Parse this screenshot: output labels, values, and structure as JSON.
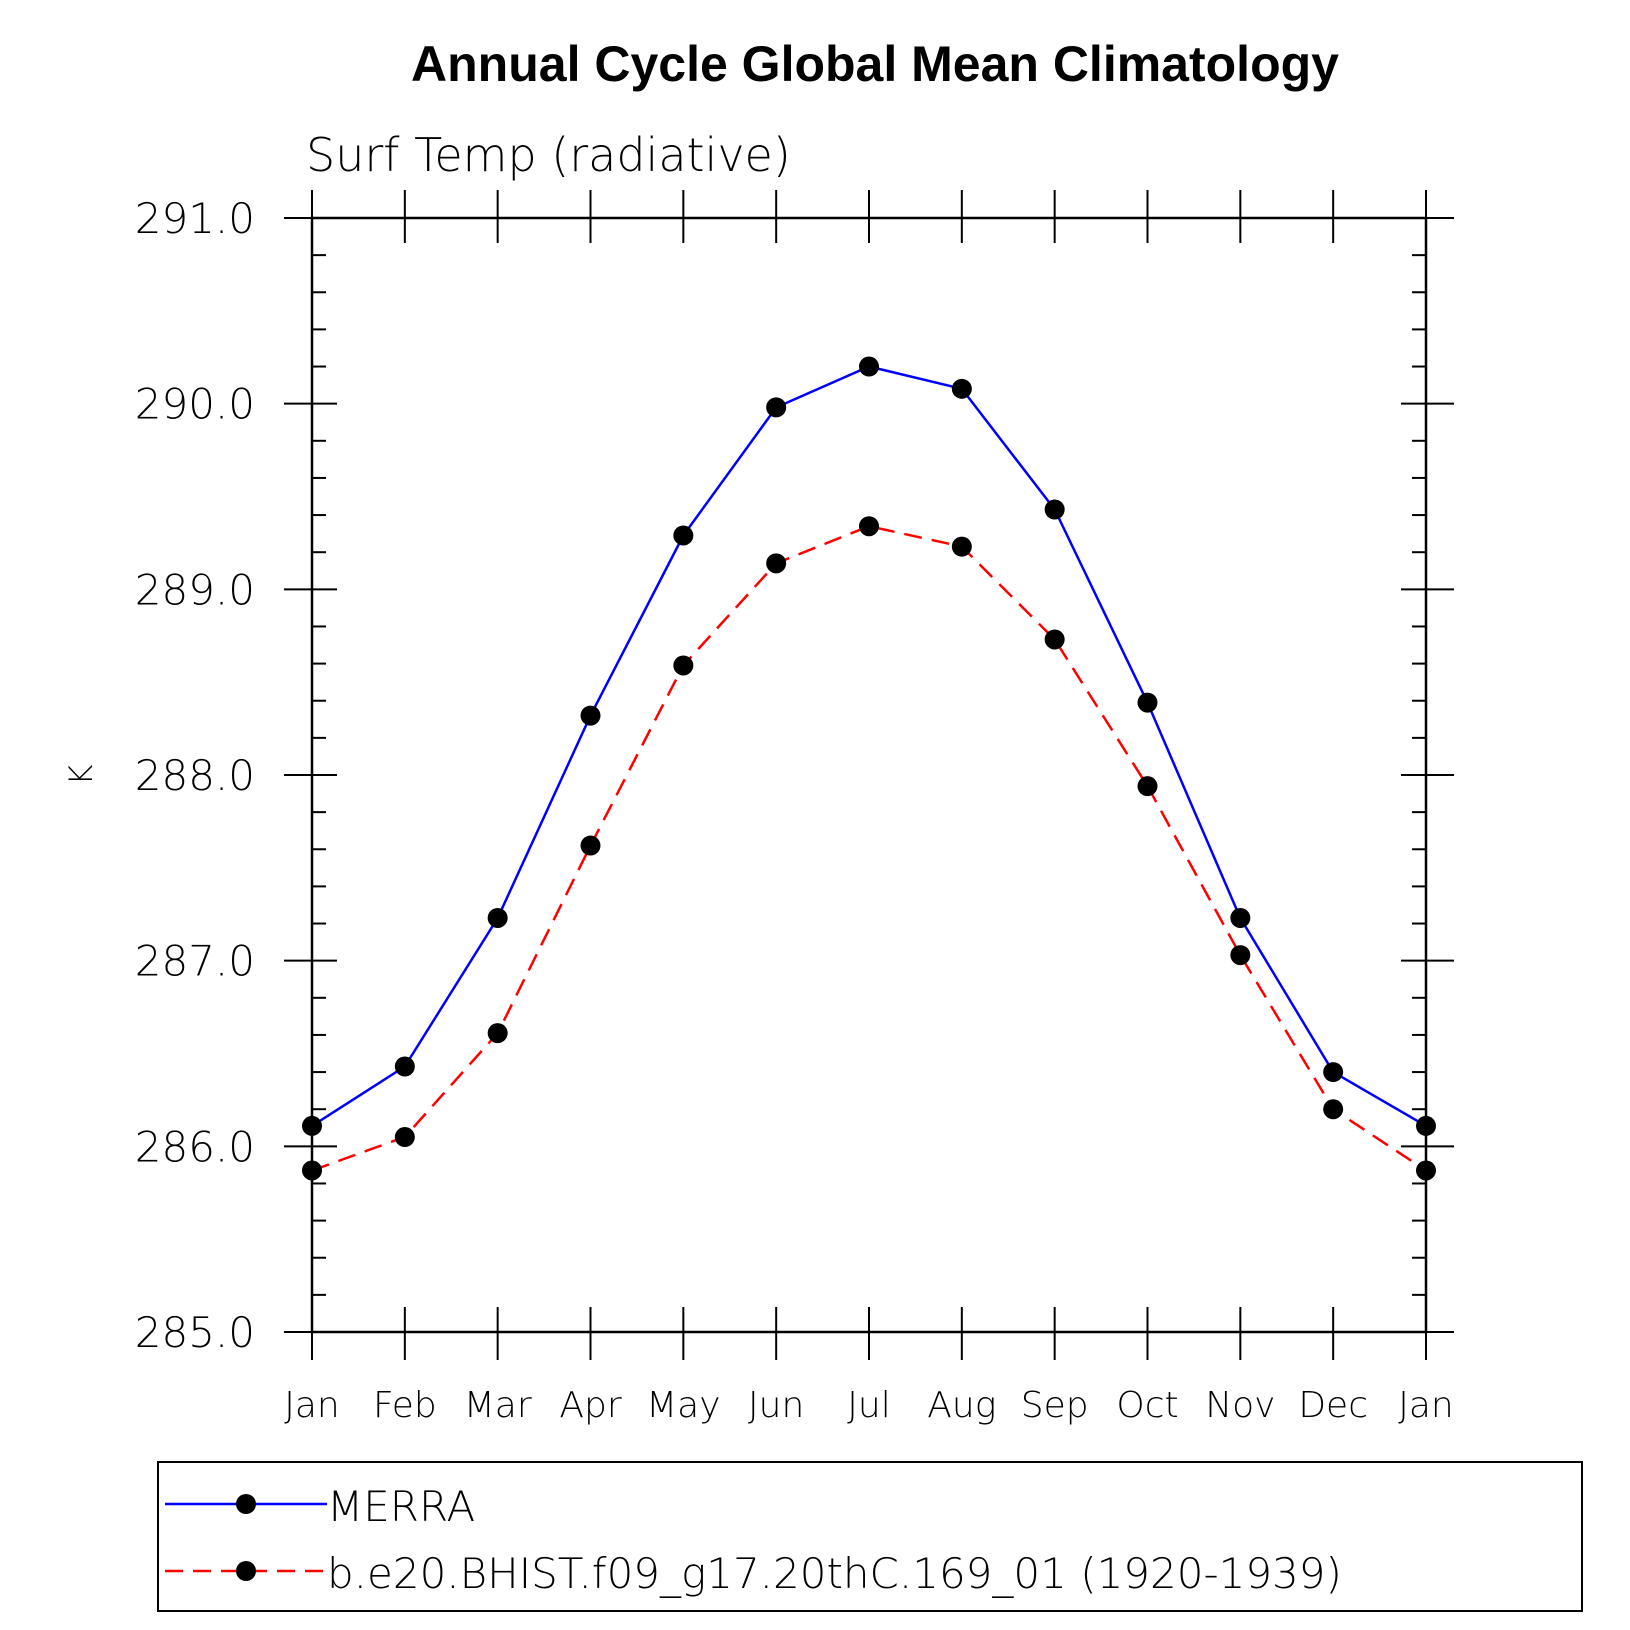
{
  "chart_data": {
    "type": "line",
    "title": "Annual Cycle Global Mean Climatology",
    "subtitle": "Surf Temp (radiative)",
    "xlabel": "",
    "ylabel": "K",
    "categories": [
      "Jan",
      "Feb",
      "Mar",
      "Apr",
      "May",
      "Jun",
      "Jul",
      "Aug",
      "Sep",
      "Oct",
      "Nov",
      "Dec",
      "Jan"
    ],
    "ylim": [
      285.0,
      291.0
    ],
    "yticks": [
      285.0,
      286.0,
      287.0,
      288.0,
      289.0,
      290.0,
      291.0
    ],
    "ytick_labels": [
      "285.0",
      "286.0",
      "287.0",
      "288.0",
      "289.0",
      "290.0",
      "291.0"
    ],
    "minor_per_major": 5,
    "grid": false,
    "legend_position": "bottom",
    "series": [
      {
        "name": "MERRA",
        "color": "#0000ff",
        "style": "solid",
        "marker": "circle",
        "values": [
          286.11,
          286.43,
          287.23,
          288.32,
          289.29,
          289.98,
          290.2,
          290.08,
          289.43,
          288.39,
          287.23,
          286.4,
          286.11
        ]
      },
      {
        "name": "b.e20.BHIST.f09_g17.20thC.169_01 (1920-1939)",
        "color": "#ff0000",
        "style": "dashed",
        "marker": "circle",
        "values": [
          285.87,
          286.05,
          286.61,
          287.62,
          288.59,
          289.14,
          289.34,
          289.23,
          288.73,
          287.94,
          287.03,
          286.2,
          285.87
        ]
      }
    ]
  }
}
